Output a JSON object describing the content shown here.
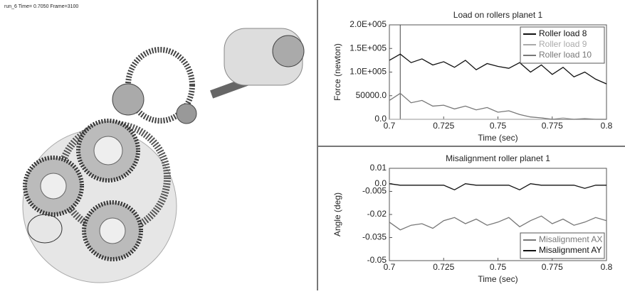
{
  "header": {
    "text": "run_6  Time= 0.7050  Frame=3100"
  },
  "chart_data": [
    {
      "type": "line",
      "title": "Load on rollers planet 1",
      "xlabel": "Time (sec)",
      "ylabel": "Force (newton)",
      "x": [
        0.7,
        0.705,
        0.71,
        0.715,
        0.72,
        0.725,
        0.73,
        0.735,
        0.74,
        0.745,
        0.75,
        0.755,
        0.76,
        0.765,
        0.77,
        0.775,
        0.78,
        0.785,
        0.79,
        0.795,
        0.8
      ],
      "series": [
        {
          "name": "Roller load 8",
          "color": "#111111",
          "values": [
            125000,
            138000,
            120000,
            128000,
            115000,
            122000,
            110000,
            125000,
            105000,
            118000,
            112000,
            108000,
            120000,
            100000,
            115000,
            95000,
            110000,
            90000,
            100000,
            85000,
            75000
          ]
        },
        {
          "name": "Roller load 9",
          "color": "#aaaaaa",
          "values": [
            0,
            0,
            0,
            0,
            0,
            0,
            0,
            0,
            0,
            0,
            0,
            0,
            0,
            0,
            0,
            0,
            3000,
            0,
            2000,
            0,
            0
          ]
        },
        {
          "name": "Roller load 10",
          "color": "#777777",
          "values": [
            40000,
            55000,
            35000,
            40000,
            28000,
            30000,
            22000,
            28000,
            20000,
            25000,
            15000,
            18000,
            10000,
            5000,
            3000,
            0,
            0,
            0,
            0,
            0,
            0
          ]
        }
      ],
      "xlim": [
        0.7,
        0.8
      ],
      "xticks": [
        0.7,
        0.725,
        0.75,
        0.775,
        0.8
      ],
      "ylim": [
        0,
        200000
      ],
      "yticks": [
        {
          "value": 0,
          "label": "0.0"
        },
        {
          "value": 50000,
          "label": "50000.0"
        },
        {
          "value": 100000,
          "label": "1.0E+005"
        },
        {
          "value": 150000,
          "label": "1.5E+005"
        },
        {
          "value": 200000,
          "label": "2.0E+005"
        }
      ],
      "legend": "upper right",
      "grid": false,
      "cursor_x": 0.705
    },
    {
      "type": "line",
      "title": "Misalignment roller planet 1",
      "xlabel": "Time (sec)",
      "ylabel": "Angle (deg)",
      "x": [
        0.7,
        0.705,
        0.71,
        0.715,
        0.72,
        0.725,
        0.73,
        0.735,
        0.74,
        0.745,
        0.75,
        0.755,
        0.76,
        0.765,
        0.77,
        0.775,
        0.78,
        0.785,
        0.79,
        0.795,
        0.8
      ],
      "series": [
        {
          "name": "Misalignment AX",
          "color": "#777777",
          "values": [
            -0.025,
            -0.03,
            -0.027,
            -0.026,
            -0.029,
            -0.024,
            -0.022,
            -0.026,
            -0.023,
            -0.027,
            -0.025,
            -0.022,
            -0.028,
            -0.024,
            -0.021,
            -0.026,
            -0.023,
            -0.027,
            -0.025,
            -0.022,
            -0.024
          ]
        },
        {
          "name": "Misalignment AY",
          "color": "#111111",
          "values": [
            0.0,
            -0.001,
            -0.001,
            -0.001,
            -0.001,
            -0.001,
            -0.004,
            0.0,
            -0.001,
            -0.001,
            -0.001,
            -0.001,
            -0.004,
            0.0,
            -0.001,
            -0.001,
            -0.001,
            -0.001,
            -0.003,
            -0.001,
            -0.001
          ]
        }
      ],
      "xlim": [
        0.7,
        0.8
      ],
      "xticks": [
        0.7,
        0.725,
        0.75,
        0.775,
        0.8
      ],
      "ylim": [
        -0.05,
        0.01
      ],
      "yticks": [
        0.01,
        {
          "value": 0,
          "label": "0.0"
        },
        -0.005,
        -0.02,
        -0.035,
        {
          "value": -0.05,
          "label": "-0.05"
        }
      ],
      "legend": "lower right",
      "grid": false
    }
  ]
}
